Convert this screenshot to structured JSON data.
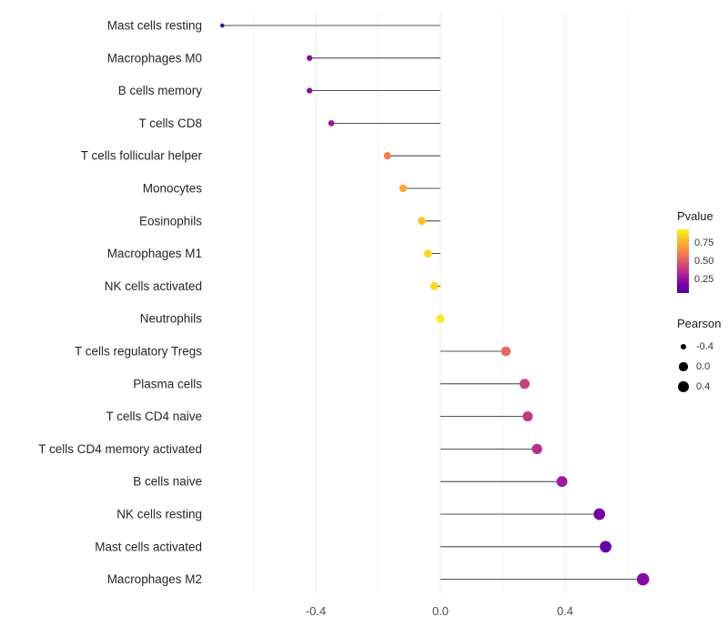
{
  "chart_data": {
    "type": "scatter",
    "variant": "lollipop",
    "title": "",
    "xlabel": "",
    "ylabel": "",
    "xlim": [
      -0.75,
      0.72
    ],
    "grid": {
      "minor": [
        -0.6,
        -0.2,
        0.2,
        0.6
      ]
    },
    "xticks": [
      {
        "label": "-0.4",
        "value": -0.4
      },
      {
        "label": "0.0",
        "value": 0.0
      },
      {
        "label": "0.4",
        "value": 0.4
      }
    ],
    "legend": {
      "color": {
        "title": "Pvalue",
        "colormap": "plasma",
        "ticks": [
          "0.75",
          "0.50",
          "0.25"
        ]
      },
      "size": {
        "title": "Pearson",
        "ticks": [
          "-0.4",
          "0.0",
          "0.4"
        ]
      }
    },
    "rows": [
      {
        "label": "Mast cells resting",
        "pearson": -0.7,
        "pvalue": 0.1
      },
      {
        "label": "Macrophages M0",
        "pearson": -0.42,
        "pvalue": 0.3
      },
      {
        "label": "B cells memory",
        "pearson": -0.42,
        "pvalue": 0.3
      },
      {
        "label": "T cells CD8",
        "pearson": -0.35,
        "pvalue": 0.33
      },
      {
        "label": "T cells follicular helper",
        "pearson": -0.17,
        "pvalue": 0.68
      },
      {
        "label": "Monocytes",
        "pearson": -0.12,
        "pvalue": 0.8
      },
      {
        "label": "Eosinophils",
        "pearson": -0.06,
        "pvalue": 0.88
      },
      {
        "label": "Macrophages M1",
        "pearson": -0.04,
        "pvalue": 0.92
      },
      {
        "label": "NK cells activated",
        "pearson": -0.02,
        "pvalue": 0.93
      },
      {
        "label": "Neutrophils",
        "pearson": 0.0,
        "pvalue": 0.97
      },
      {
        "label": "T cells regulatory Tregs",
        "pearson": 0.21,
        "pvalue": 0.62
      },
      {
        "label": "Plasma cells",
        "pearson": 0.27,
        "pvalue": 0.48
      },
      {
        "label": "T cells CD4 naive",
        "pearson": 0.28,
        "pvalue": 0.46
      },
      {
        "label": "T cells CD4 memory activated",
        "pearson": 0.31,
        "pvalue": 0.42
      },
      {
        "label": "B cells naive",
        "pearson": 0.39,
        "pvalue": 0.34
      },
      {
        "label": "NK cells resting",
        "pearson": 0.51,
        "pvalue": 0.22
      },
      {
        "label": "Mast cells activated",
        "pearson": 0.53,
        "pvalue": 0.2
      },
      {
        "label": "Macrophages M2",
        "pearson": 0.65,
        "pvalue": 0.28
      }
    ]
  }
}
